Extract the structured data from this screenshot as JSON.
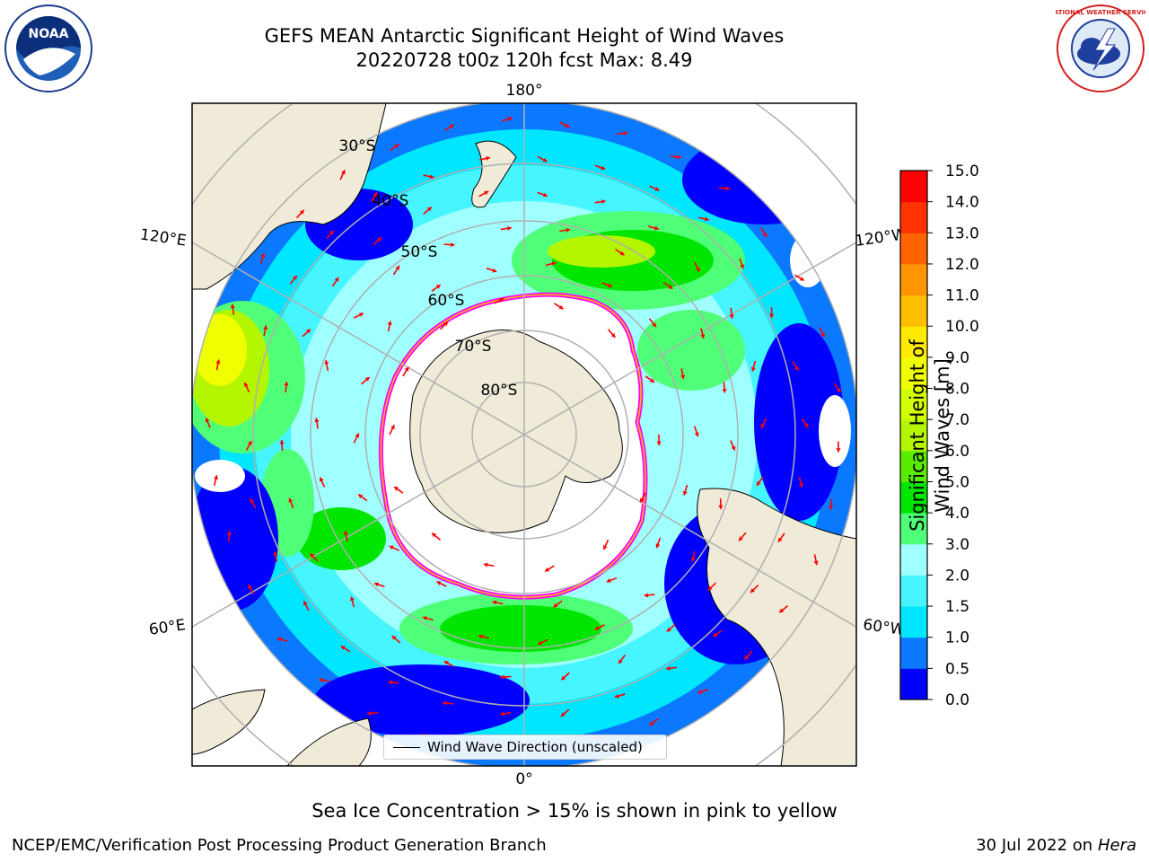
{
  "header": {
    "title_line1": "GEFS MEAN Antarctic Significant Height of Wind Waves",
    "title_line2": "20220728 t00z 120h fcst   Max: 8.49"
  },
  "logos": {
    "left": {
      "icon": "noaa-logo-icon",
      "text": "NOAA"
    },
    "right": {
      "icon": "nws-logo-icon",
      "text": "NATIONAL WEATHER SERVICE"
    }
  },
  "map": {
    "projection": "south-polar-stereographic",
    "longitude_labels": [
      "180°",
      "120°E",
      "120°W",
      "60°E",
      "60°W",
      "0°"
    ],
    "latitude_labels": [
      "30°S",
      "40°S",
      "50°S",
      "60°S",
      "70°S",
      "80°S"
    ],
    "legend_label": "Wind Wave Direction (unscaled)",
    "colors": {
      "land": "#efebd8",
      "ocean_low": "#0000ff",
      "sea_ice_edge": "#ff00ff",
      "arrow": "#ff0000"
    }
  },
  "colorbar": {
    "title": "Significant Height of Wind Waves [m]",
    "tick_labels": [
      "0.0",
      "0.5",
      "1.0",
      "1.5",
      "2.0",
      "3.0",
      "4.0",
      "5.0",
      "6.0",
      "7.0",
      "8.0",
      "9.0",
      "10.0",
      "11.0",
      "12.0",
      "13.0",
      "14.0",
      "15.0"
    ],
    "colors": [
      "#0000ff",
      "#0a78ff",
      "#00e6ff",
      "#46f5ff",
      "#a0ffff",
      "#50ff78",
      "#00e600",
      "#5aeb00",
      "#b4f500",
      "#d2ff00",
      "#f0ff00",
      "#ffeb00",
      "#ffbe00",
      "#ff9600",
      "#ff6400",
      "#ff3200",
      "#ff0000"
    ]
  },
  "captions": {
    "sea_ice_note": "Sea Ice Concentration > 15% is shown in pink to yellow",
    "branch": "NCEP/EMC/Verification Post Processing Product Generation Branch",
    "date": "30 Jul 2022 on",
    "machine": "Hera"
  }
}
